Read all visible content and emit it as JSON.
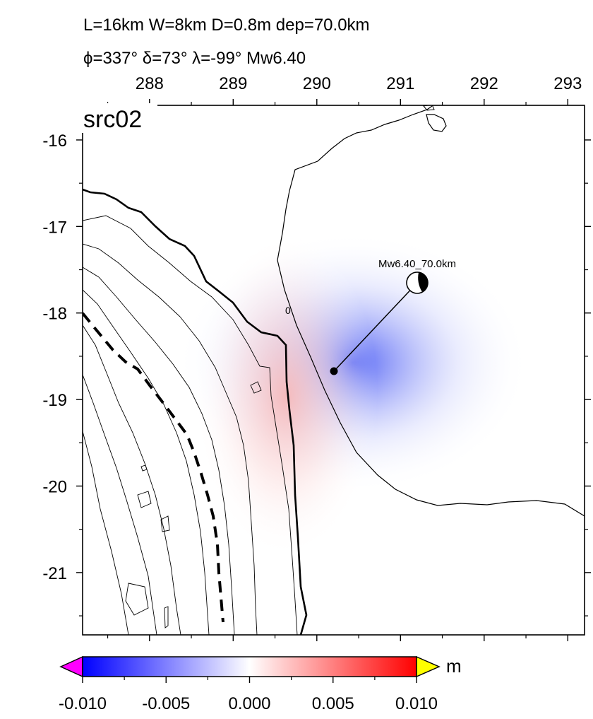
{
  "header": {
    "line1": "L=16km W=8km D=0.8m dep=70.0km",
    "line2": "ϕ=337° δ=73° λ=-99° Mw6.40"
  },
  "panel_label": "src02",
  "map": {
    "lon_range": [
      287.2,
      293.2
    ],
    "lat_range": [
      -21.72,
      -15.6
    ],
    "lon_ticks": [
      "288",
      "289",
      "290",
      "291",
      "292",
      "293"
    ],
    "lat_ticks": [
      "-16",
      "-17",
      "-18",
      "-19",
      "-20",
      "-21"
    ],
    "zero_contour_label": "0",
    "fault_point": {
      "lon": 290.2,
      "lat": -18.7
    },
    "beachball": {
      "lon": 291.2,
      "lat": -17.7,
      "label": "Mw6.40_70.0km"
    },
    "deformation": {
      "subsidence_center": {
        "lon": 290.55,
        "lat": -18.6,
        "peak": -0.006
      },
      "uplift_center": {
        "lon": 289.75,
        "lat": -19.0,
        "peak": 0.002
      }
    }
  },
  "colorbar": {
    "unit": "m",
    "min": -0.01,
    "max": 0.01,
    "colors": [
      "#0000ff",
      "#ffffff",
      "#ff0000"
    ],
    "low_triangle_color": "#ff00ff",
    "high_triangle_color": "#ffff00",
    "tick_labels": [
      "-0.010",
      "-0.005",
      "0.000",
      "0.005",
      "0.010"
    ]
  }
}
